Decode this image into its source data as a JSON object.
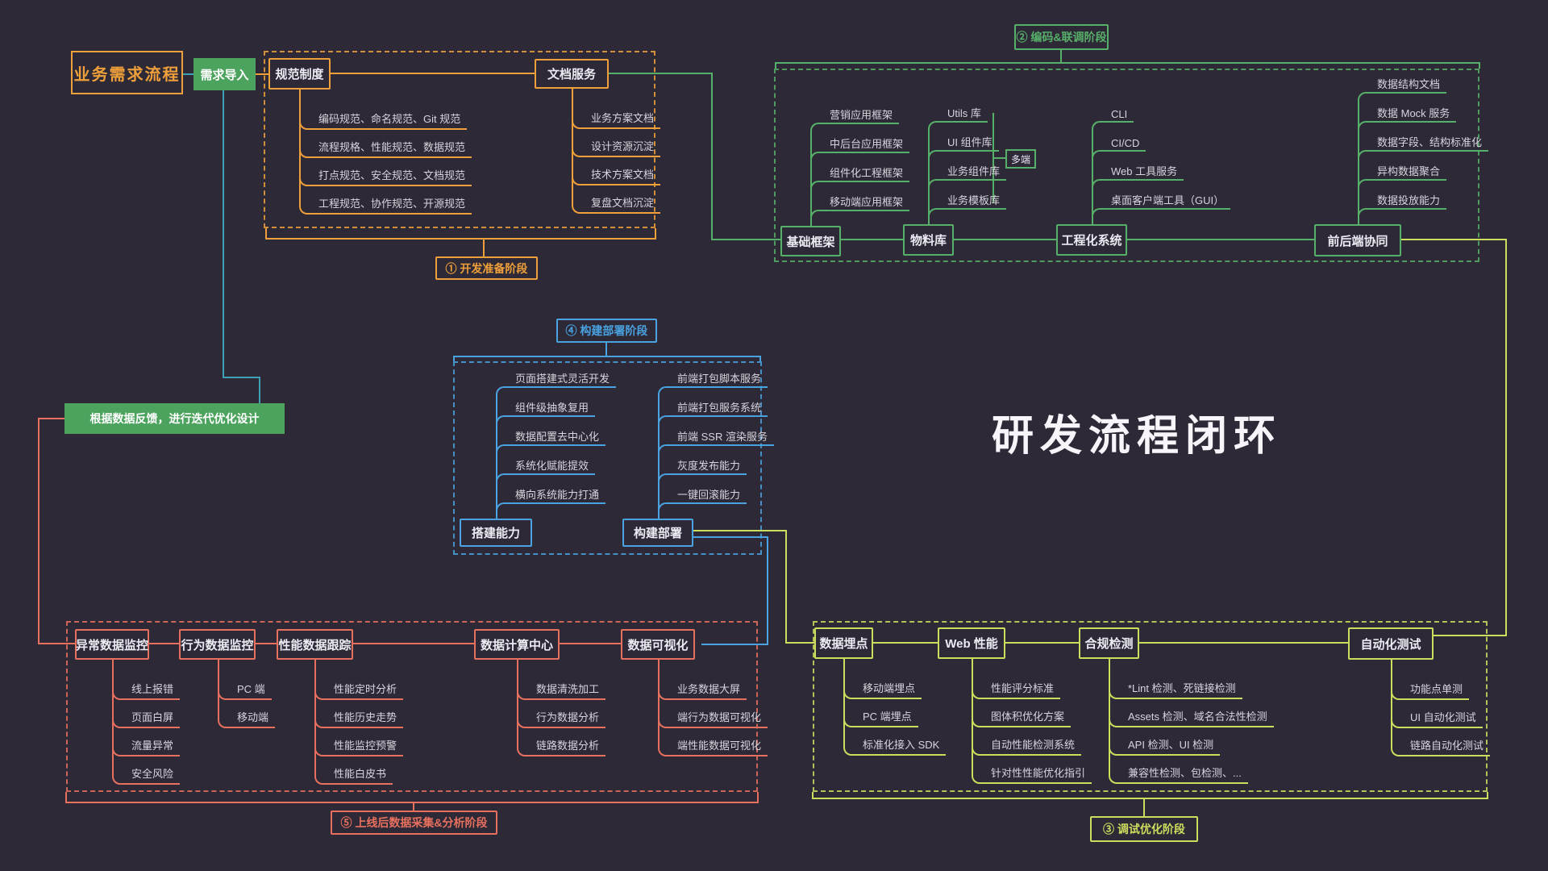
{
  "title": "研发流程闭环",
  "flow": {
    "business_box": "业务需求流程",
    "demand_import": "需求导入",
    "feedback_box": "根据数据反馈，进行迭代优化设计"
  },
  "colors": {
    "stage1_orange": "#efa03a",
    "stage2_green": "#57b06a",
    "stage3_yellow": "#cfdd5e",
    "stage4_blue": "#4aa2e0",
    "stage5_red": "#e8705f",
    "fill_green": "#4ca35e",
    "teal_line": "#3f9fb5",
    "background": "#2d2936"
  },
  "s1": {
    "label": "① 开发准备阶段",
    "groups": [
      {
        "label": "规范制度",
        "items": [
          "编码规范、命名规范、Git 规范",
          "流程规格、性能规范、数据规范",
          "打点规范、安全规范、文档规范",
          "工程规范、协作规范、开源规范"
        ]
      },
      {
        "label": "文档服务",
        "items": [
          "业务方案文档",
          "设计资源沉淀",
          "技术方案文档",
          "复盘文档沉淀"
        ]
      }
    ]
  },
  "s2": {
    "label": "② 编码&联调阶段",
    "multi_end": "多端",
    "groups": [
      {
        "label": "基础框架",
        "items": [
          "营销应用框架",
          "中后台应用框架",
          "组件化工程框架",
          "移动端应用框架"
        ]
      },
      {
        "label": "物料库",
        "items": [
          "Utils 库",
          "UI 组件库",
          "业务组件库",
          "业务模板库"
        ]
      },
      {
        "label": "工程化系统",
        "items": [
          "CLI",
          "CI/CD",
          "Web 工具服务",
          "桌面客户端工具（GUI）"
        ]
      },
      {
        "label": "前后端协同",
        "items": [
          "数据结构文档",
          "数据 Mock 服务",
          "数据字段、结构标准化",
          "异构数据聚合",
          "数据投放能力"
        ]
      }
    ]
  },
  "s3": {
    "label": "③ 调试优化阶段",
    "groups": [
      {
        "label": "数据埋点",
        "items": [
          "移动端埋点",
          "PC 端埋点",
          "标准化接入 SDK"
        ]
      },
      {
        "label": "Web 性能",
        "items": [
          "性能评分标准",
          "图体积优化方案",
          "自动性能检测系统",
          "针对性性能优化指引"
        ]
      },
      {
        "label": "合规检测",
        "items": [
          "*Lint 检测、死链接检测",
          "Assets 检测、域名合法性检测",
          "API 检测、UI 检测",
          "兼容性检测、包检测、..."
        ]
      },
      {
        "label": "自动化测试",
        "items": [
          "功能点单测",
          "UI 自动化测试",
          "链路自动化测试"
        ]
      }
    ]
  },
  "s4": {
    "label": "④ 构建部署阶段",
    "groups": [
      {
        "label": "搭建能力",
        "items": [
          "页面搭建式灵活开发",
          "组件级抽象复用",
          "数据配置去中心化",
          "系统化赋能提效",
          "横向系统能力打通"
        ]
      },
      {
        "label": "构建部署",
        "items": [
          "前端打包脚本服务",
          "前端打包服务系统",
          "前端 SSR 渲染服务",
          "灰度发布能力",
          "一键回滚能力"
        ]
      }
    ]
  },
  "s5": {
    "label": "⑤ 上线后数据采集&分析阶段",
    "groups": [
      {
        "label": "异常数据监控",
        "items": [
          "线上报错",
          "页面白屏",
          "流量异常",
          "安全风险"
        ]
      },
      {
        "label": "行为数据监控",
        "items": [
          "PC 端",
          "移动端"
        ]
      },
      {
        "label": "性能数据跟踪",
        "items": [
          "性能定时分析",
          "性能历史走势",
          "性能监控预警",
          "性能白皮书"
        ]
      },
      {
        "label": "数据计算中心",
        "items": [
          "数据清洗加工",
          "行为数据分析",
          "链路数据分析"
        ]
      },
      {
        "label": "数据可视化",
        "items": [
          "业务数据大屏",
          "端行为数据可视化",
          "端性能数据可视化"
        ]
      }
    ]
  }
}
